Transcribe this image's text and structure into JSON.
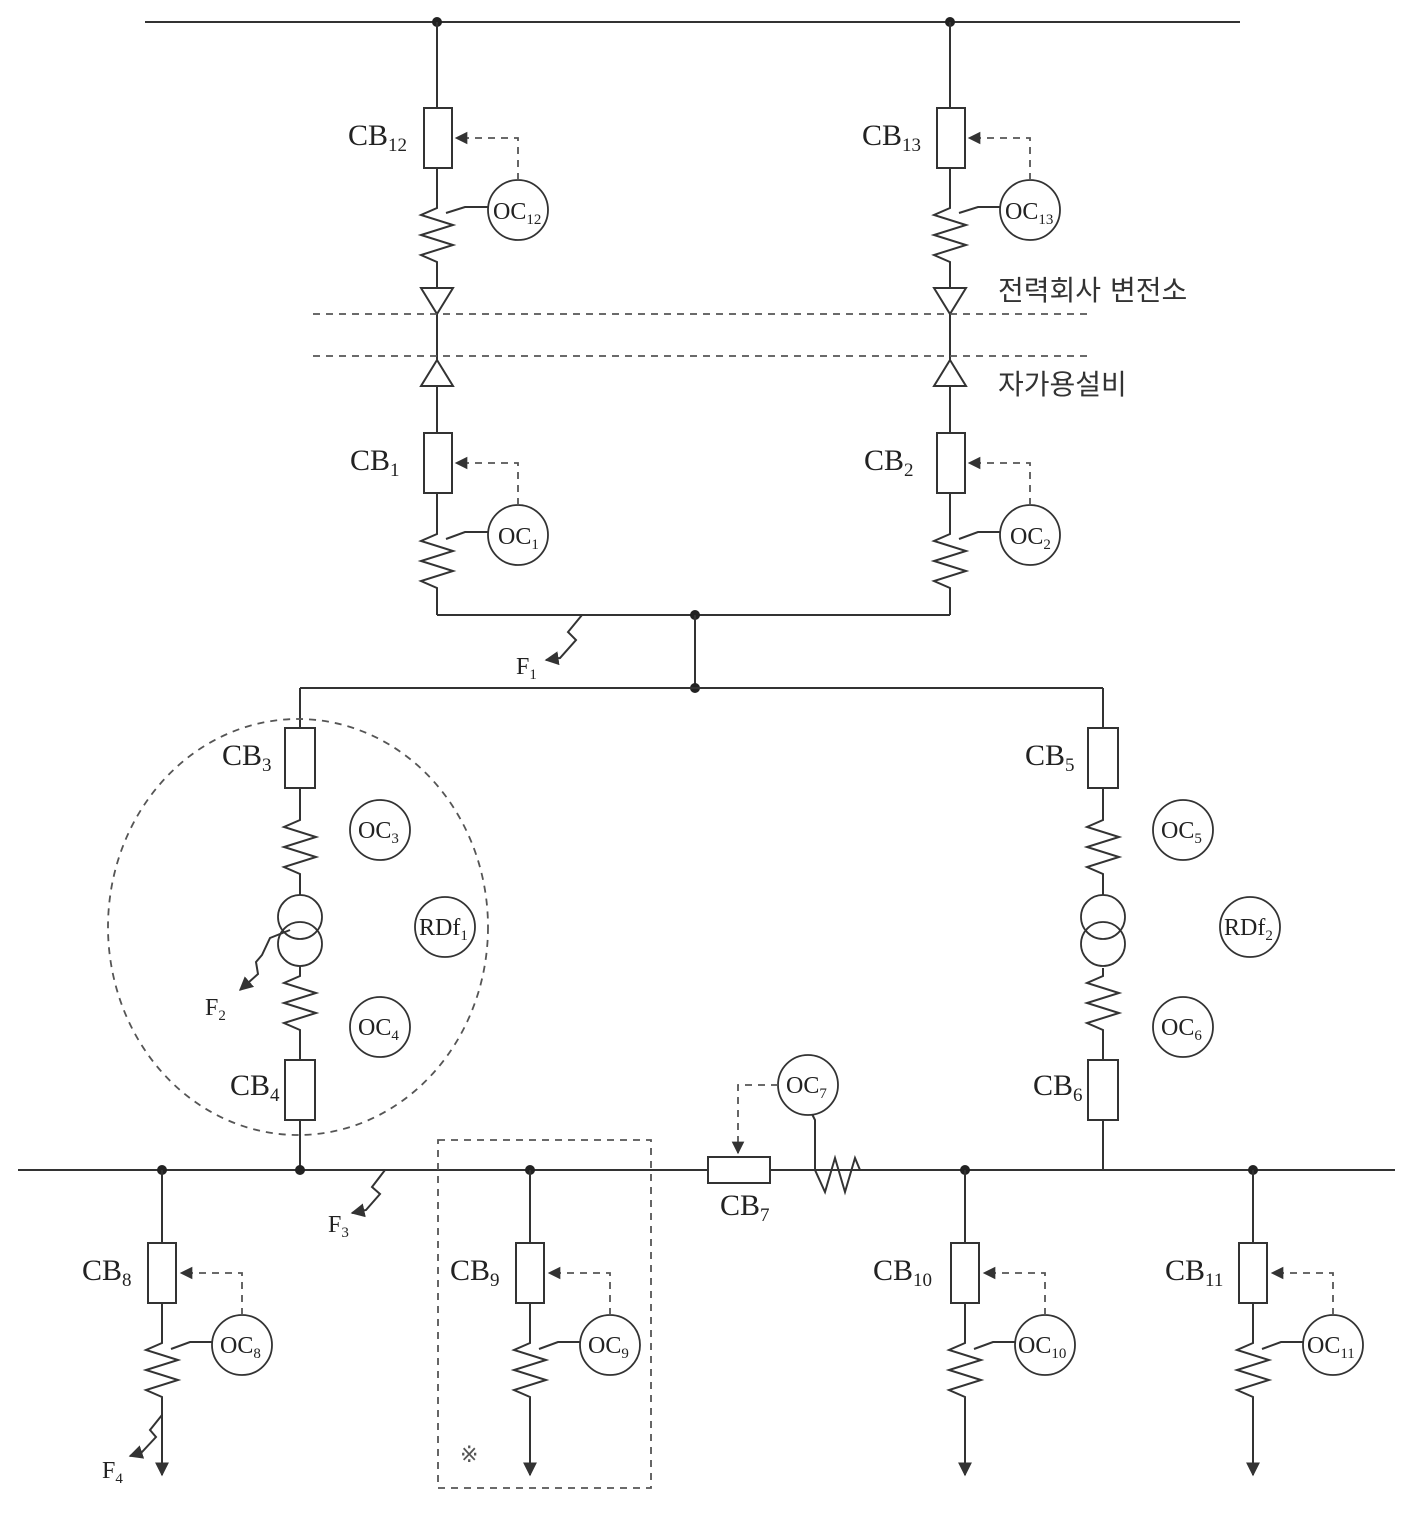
{
  "region_labels": {
    "utility_substation": "전력회사 변전소",
    "private_facility": "자가용설비",
    "note_mark": "※"
  },
  "breakers": {
    "cb12": {
      "base": "CB",
      "sub": "12"
    },
    "cb13": {
      "base": "CB",
      "sub": "13"
    },
    "cb1": {
      "base": "CB",
      "sub": "1"
    },
    "cb2": {
      "base": "CB",
      "sub": "2"
    },
    "cb3": {
      "base": "CB",
      "sub": "3"
    },
    "cb4": {
      "base": "CB",
      "sub": "4"
    },
    "cb5": {
      "base": "CB",
      "sub": "5"
    },
    "cb6": {
      "base": "CB",
      "sub": "6"
    },
    "cb7": {
      "base": "CB",
      "sub": "7"
    },
    "cb8": {
      "base": "CB",
      "sub": "8"
    },
    "cb9": {
      "base": "CB",
      "sub": "9"
    },
    "cb10": {
      "base": "CB",
      "sub": "10"
    },
    "cb11": {
      "base": "CB",
      "sub": "11"
    }
  },
  "relays": {
    "oc12": {
      "base": "OC",
      "sub": "12"
    },
    "oc13": {
      "base": "OC",
      "sub": "13"
    },
    "oc1": {
      "base": "OC",
      "sub": "1"
    },
    "oc2": {
      "base": "OC",
      "sub": "2"
    },
    "oc3": {
      "base": "OC",
      "sub": "3"
    },
    "oc4": {
      "base": "OC",
      "sub": "4"
    },
    "oc5": {
      "base": "OC",
      "sub": "5"
    },
    "oc6": {
      "base": "OC",
      "sub": "6"
    },
    "oc7": {
      "base": "OC",
      "sub": "7"
    },
    "oc8": {
      "base": "OC",
      "sub": "8"
    },
    "oc9": {
      "base": "OC",
      "sub": "9"
    },
    "oc10": {
      "base": "OC",
      "sub": "10"
    },
    "oc11": {
      "base": "OC",
      "sub": "11"
    },
    "rdf1": {
      "base": "RDf",
      "sub": "1"
    },
    "rdf2": {
      "base": "RDf",
      "sub": "2"
    }
  },
  "faults": {
    "f1": {
      "base": "F",
      "sub": "1"
    },
    "f2": {
      "base": "F",
      "sub": "2"
    },
    "f3": {
      "base": "F",
      "sub": "3"
    },
    "f4": {
      "base": "F",
      "sub": "4"
    }
  }
}
